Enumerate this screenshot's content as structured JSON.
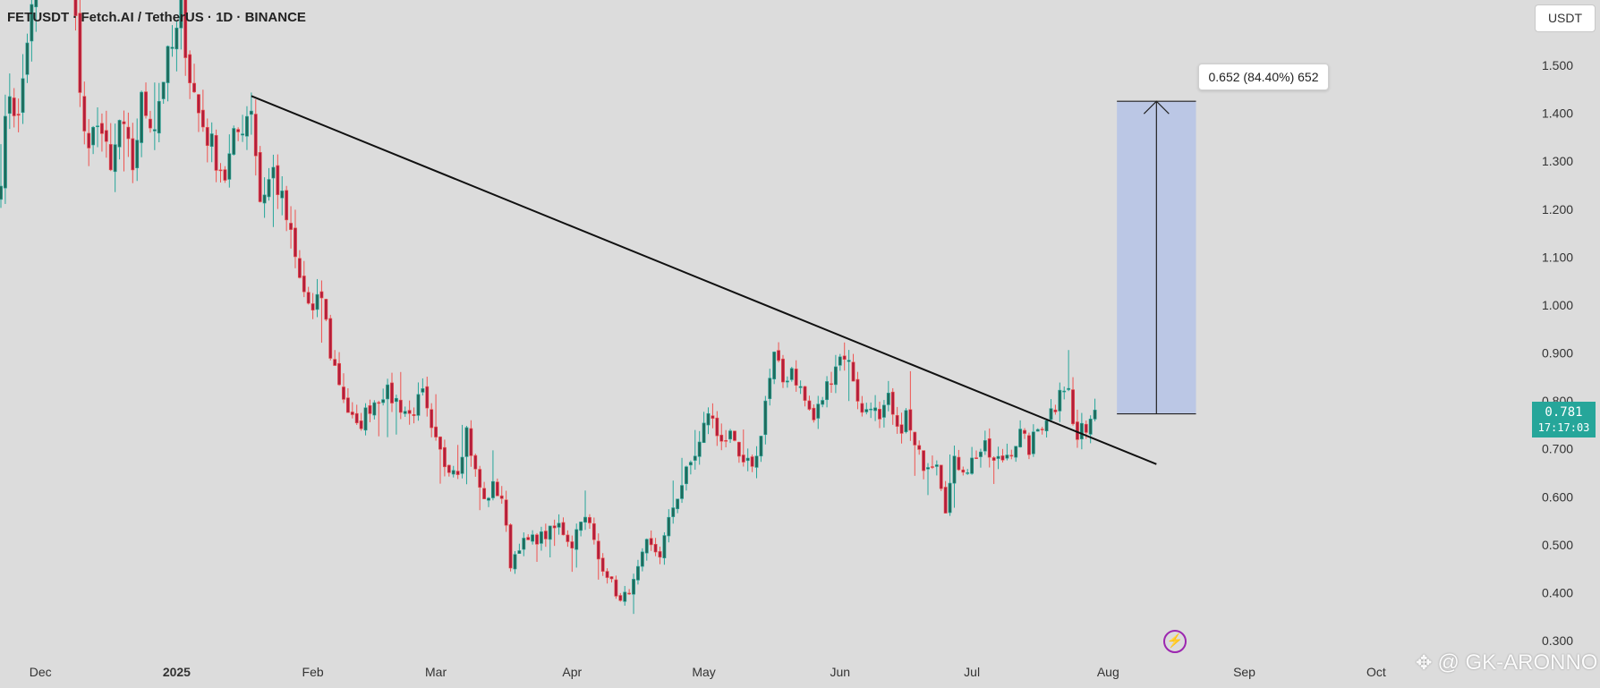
{
  "header": {
    "pair_title": "FETUSDT · Fetch.AI / TetherUS · 1D · BINANCE",
    "currency_label": "USDT"
  },
  "last_price": {
    "price": "0.781",
    "countdown": "17:17:03"
  },
  "measure_tool": {
    "label": "0.652 (84.40%) 652",
    "from_price": 0.773,
    "to_price": 1.425,
    "from_date": "2025-08-03",
    "to_date": "2025-08-21",
    "fill_color": "#b7c4e6"
  },
  "watermark": {
    "text": "@ GK-ARONNO",
    "logo_icon": "binance-diamond-icon"
  },
  "flash_icon": "lightning-icon",
  "colors": {
    "background": "#dcdcdc",
    "up": "#26a69a",
    "down": "#ef5350",
    "body_up": "#1f6b5c",
    "body_down": "#b31e3b",
    "trendline": "#111111"
  },
  "chart_data": {
    "type": "candlestick",
    "interval": "1D",
    "x_axis": {
      "ticks": [
        {
          "label": "Dec",
          "date": "2024-12-01",
          "bold": false
        },
        {
          "label": "2025",
          "date": "2025-01-01",
          "bold": true
        },
        {
          "label": "Feb",
          "date": "2025-02-01",
          "bold": false
        },
        {
          "label": "Mar",
          "date": "2025-03-01",
          "bold": false
        },
        {
          "label": "Apr",
          "date": "2025-04-01",
          "bold": false
        },
        {
          "label": "May",
          "date": "2025-05-01",
          "bold": false
        },
        {
          "label": "Jun",
          "date": "2025-06-01",
          "bold": false
        },
        {
          "label": "Jul",
          "date": "2025-07-01",
          "bold": false
        },
        {
          "label": "Aug",
          "date": "2025-08-01",
          "bold": false
        },
        {
          "label": "Sep",
          "date": "2025-09-01",
          "bold": false
        },
        {
          "label": "Oct",
          "date": "2025-10-01",
          "bold": false
        }
      ]
    },
    "y_axis": {
      "ticks": [
        "0.300",
        "0.400",
        "0.500",
        "0.600",
        "0.700",
        "0.800",
        "0.900",
        "1.000",
        "1.100",
        "1.200",
        "1.300",
        "1.400",
        "1.500"
      ],
      "ylim": [
        0.28,
        1.625
      ]
    },
    "trendline": {
      "from": {
        "date": "2025-01-18",
        "price": 1.436
      },
      "to": {
        "date": "2025-08-12",
        "price": 0.668
      }
    },
    "waypoints": [
      [
        "2024-11-22",
        1.28
      ],
      [
        "2024-11-24",
        1.45
      ],
      [
        "2024-11-26",
        1.38
      ],
      [
        "2024-11-28",
        1.56
      ],
      [
        "2024-12-01",
        1.7
      ],
      [
        "2024-12-05",
        1.78
      ],
      [
        "2024-12-09",
        1.64
      ],
      [
        "2024-12-10",
        1.43
      ],
      [
        "2024-12-12",
        1.3
      ],
      [
        "2024-12-14",
        1.4
      ],
      [
        "2024-12-17",
        1.27
      ],
      [
        "2024-12-19",
        1.38
      ],
      [
        "2024-12-22",
        1.29
      ],
      [
        "2024-12-24",
        1.42
      ],
      [
        "2024-12-27",
        1.38
      ],
      [
        "2024-12-29",
        1.48
      ],
      [
        "2025-01-01",
        1.56
      ],
      [
        "2025-01-02",
        1.62
      ],
      [
        "2025-01-04",
        1.48
      ],
      [
        "2025-01-06",
        1.4
      ],
      [
        "2025-01-09",
        1.33
      ],
      [
        "2025-01-12",
        1.27
      ],
      [
        "2025-01-14",
        1.34
      ],
      [
        "2025-01-16",
        1.38
      ],
      [
        "2025-01-18",
        1.42
      ],
      [
        "2025-01-20",
        1.22
      ],
      [
        "2025-01-23",
        1.28
      ],
      [
        "2025-01-26",
        1.18
      ],
      [
        "2025-01-29",
        1.05
      ],
      [
        "2025-02-01",
        0.98
      ],
      [
        "2025-02-03",
        1.02
      ],
      [
        "2025-02-05",
        0.9
      ],
      [
        "2025-02-07",
        0.84
      ],
      [
        "2025-02-09",
        0.78
      ],
      [
        "2025-02-11",
        0.74
      ],
      [
        "2025-02-14",
        0.79
      ],
      [
        "2025-02-17",
        0.82
      ],
      [
        "2025-02-20",
        0.8
      ],
      [
        "2025-02-23",
        0.77
      ],
      [
        "2025-02-26",
        0.81
      ],
      [
        "2025-02-28",
        0.73
      ],
      [
        "2025-03-03",
        0.67
      ],
      [
        "2025-03-06",
        0.66
      ],
      [
        "2025-03-08",
        0.74
      ],
      [
        "2025-03-10",
        0.65
      ],
      [
        "2025-03-12",
        0.59
      ],
      [
        "2025-03-14",
        0.62
      ],
      [
        "2025-03-16",
        0.6
      ],
      [
        "2025-03-18",
        0.46
      ],
      [
        "2025-03-20",
        0.5
      ],
      [
        "2025-03-23",
        0.51
      ],
      [
        "2025-03-26",
        0.52
      ],
      [
        "2025-03-29",
        0.54
      ],
      [
        "2025-04-01",
        0.5
      ],
      [
        "2025-04-03",
        0.56
      ],
      [
        "2025-04-05",
        0.54
      ],
      [
        "2025-04-07",
        0.47
      ],
      [
        "2025-04-09",
        0.44
      ],
      [
        "2025-04-12",
        0.38
      ],
      [
        "2025-04-15",
        0.42
      ],
      [
        "2025-04-18",
        0.5
      ],
      [
        "2025-04-21",
        0.48
      ],
      [
        "2025-04-24",
        0.58
      ],
      [
        "2025-04-27",
        0.65
      ],
      [
        "2025-04-30",
        0.71
      ],
      [
        "2025-05-02",
        0.78
      ],
      [
        "2025-05-04",
        0.73
      ],
      [
        "2025-05-07",
        0.72
      ],
      [
        "2025-05-10",
        0.66
      ],
      [
        "2025-05-13",
        0.68
      ],
      [
        "2025-05-15",
        0.8
      ],
      [
        "2025-05-17",
        0.89
      ],
      [
        "2025-05-19",
        0.84
      ],
      [
        "2025-05-21",
        0.87
      ],
      [
        "2025-05-24",
        0.8
      ],
      [
        "2025-05-26",
        0.76
      ],
      [
        "2025-05-29",
        0.83
      ],
      [
        "2025-05-31",
        0.88
      ],
      [
        "2025-06-02",
        0.9
      ],
      [
        "2025-06-04",
        0.85
      ],
      [
        "2025-06-06",
        0.77
      ],
      [
        "2025-06-08",
        0.8
      ],
      [
        "2025-06-10",
        0.75
      ],
      [
        "2025-06-12",
        0.8
      ],
      [
        "2025-06-14",
        0.73
      ],
      [
        "2025-06-16",
        0.77
      ],
      [
        "2025-06-18",
        0.7
      ],
      [
        "2025-06-20",
        0.67
      ],
      [
        "2025-06-23",
        0.68
      ],
      [
        "2025-06-25",
        0.58
      ],
      [
        "2025-06-27",
        0.67
      ],
      [
        "2025-06-30",
        0.66
      ],
      [
        "2025-07-02",
        0.69
      ],
      [
        "2025-07-04",
        0.7
      ],
      [
        "2025-07-06",
        0.67
      ],
      [
        "2025-07-08",
        0.68
      ],
      [
        "2025-07-10",
        0.7
      ],
      [
        "2025-07-12",
        0.73
      ],
      [
        "2025-07-14",
        0.7
      ],
      [
        "2025-07-16",
        0.74
      ],
      [
        "2025-07-18",
        0.77
      ],
      [
        "2025-07-20",
        0.79
      ],
      [
        "2025-07-21",
        0.84
      ],
      [
        "2025-07-23",
        0.82
      ],
      [
        "2025-07-24",
        0.75
      ],
      [
        "2025-07-25",
        0.72
      ],
      [
        "2025-07-27",
        0.75
      ],
      [
        "2025-07-29",
        0.781
      ]
    ]
  }
}
